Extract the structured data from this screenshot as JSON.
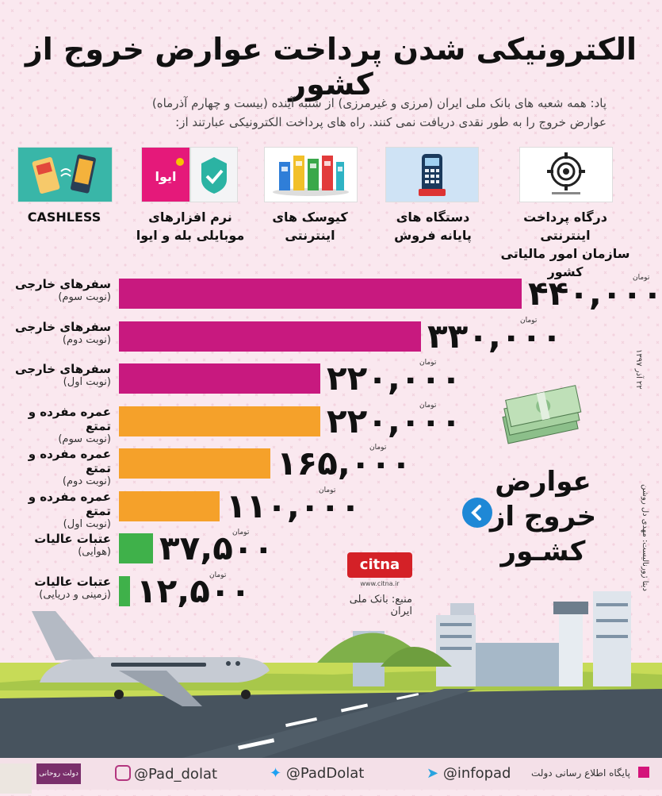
{
  "header": {
    "title": "الکترونیکی شدن پرداخت عوارض خروج از کشور",
    "subtitle_line1": "پاد: همه شعبه های بانک ملی ایران (مرزی و غیرمرزی) از شنبه آینده (بیست و چهارم آذرماه)",
    "subtitle_line2": "عوارض خروج را به طور نقدی دریافت نمی کنند. راه های پرداخت الکترونیکی عبارتند از:"
  },
  "payment_methods": [
    {
      "line1": "درگاه پرداخت اینترنتی",
      "line2": "سازمان امور مالیاتی کشور",
      "icon": "tax-organization-logo-icon"
    },
    {
      "line1": "دستگاه های",
      "line2": "پایانه فروش",
      "icon": "pos-terminal-icon"
    },
    {
      "line1": "کیوسک های",
      "line2": "اینترنتی",
      "icon": "kiosk-icon"
    },
    {
      "line1": "نرم افزارهای",
      "line2": "موبایلی بله و ایوا",
      "icon": "mobile-apps-icon",
      "app_name": "ایوا"
    },
    {
      "line1": "CASHLESS",
      "line2": "",
      "icon": "cashless-icon"
    }
  ],
  "chart_data": {
    "type": "bar",
    "orientation": "horizontal",
    "unit": "تومان",
    "categories": [
      {
        "line1": "سفرهای خارجی",
        "line2": "(نوبت سوم)"
      },
      {
        "line1": "سفرهای خارجی",
        "line2": "(نوبت دوم)"
      },
      {
        "line1": "سفرهای خارجی",
        "line2": "(نوبت اول)"
      },
      {
        "line1": "عمره مفرده و تمتع",
        "line2": "(نوبت سوم)"
      },
      {
        "line1": "عمره مفرده و تمتع",
        "line2": "(نوبت دوم)"
      },
      {
        "line1": "عمره مفرده و تمتع",
        "line2": "(نوبت اول)"
      },
      {
        "line1": "عتبات عالیات",
        "line2": "(هوایی)"
      },
      {
        "line1": "عتبات عالیات",
        "line2": "(زمینی و دریایی)"
      }
    ],
    "values": [
      440000,
      330000,
      220000,
      220000,
      165000,
      110000,
      37500,
      12500
    ],
    "value_labels": [
      "۴۴۰,۰۰۰",
      "۳۳۰,۰۰۰",
      "۲۲۰,۰۰۰",
      "۲۲۰,۰۰۰",
      "۱۶۵,۰۰۰",
      "۱۱۰,۰۰۰",
      "۳۷,۵۰۰",
      "۱۲,۵۰۰"
    ],
    "colors": [
      "#c8197f",
      "#c8197f",
      "#c8197f",
      "#f5a12a",
      "#f5a12a",
      "#f5a12a",
      "#3fb14a",
      "#3fb14a"
    ],
    "grid": false
  },
  "side": {
    "title_line1": "عوارض",
    "title_line2": "خروج از",
    "title_line3": "کشـور",
    "date": "۲۲ آذر ۱۳۹۷",
    "credit": "دیتا ژورنالیست: مهدی دل روشن",
    "source": "منبع: بانک ملی ایران",
    "arrow_icon": "chevron-left-icon"
  },
  "branding": {
    "citna_logo": "citna",
    "citna_url": "www.citna.ir"
  },
  "footer": {
    "instagram": "@Pad_dolat",
    "twitter": "@PadDolat",
    "telegram": "@infopad",
    "site_name": "پایگاه اطلاع رسانی دولت",
    "badge": "دولت روحانی"
  },
  "colors": {
    "background": "#fae8ef",
    "magenta": "#c8197f",
    "orange": "#f5a12a",
    "green": "#3fb14a",
    "accent_blue": "#1e88d6"
  }
}
